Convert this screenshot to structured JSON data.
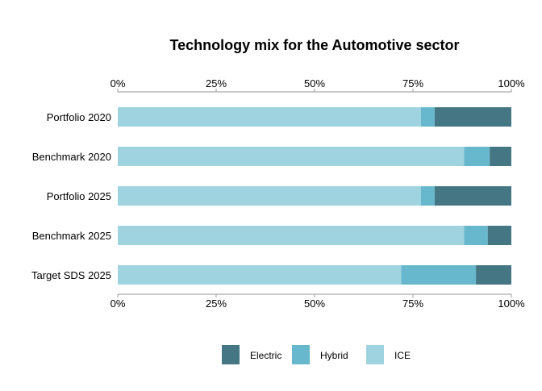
{
  "chart_data": {
    "type": "bar",
    "orientation": "horizontal",
    "stacked": true,
    "title": "Technology mix for the Automotive sector",
    "xlabel": "",
    "ylabel": "",
    "xlim": [
      0,
      1
    ],
    "x_ticks": [
      0,
      0.25,
      0.5,
      0.75,
      1.0
    ],
    "x_tick_labels": [
      "0%",
      "25%",
      "50%",
      "75%",
      "100%"
    ],
    "axis_positions": [
      "top",
      "bottom"
    ],
    "grid": false,
    "legend_position": "bottom",
    "categories": [
      "Portfolio 2020",
      "Benchmark 2020",
      "Portfolio 2025",
      "Benchmark 2025",
      "Target SDS 2025"
    ],
    "series": [
      {
        "name": "ICE",
        "color": "#a0d3e0",
        "values": [
          0.77,
          0.88,
          0.77,
          0.88,
          0.72
        ]
      },
      {
        "name": "Hybrid",
        "color": "#67b8cc",
        "values": [
          0.035,
          0.065,
          0.035,
          0.06,
          0.19
        ]
      },
      {
        "name": "Electric",
        "color": "#457684",
        "values": [
          0.195,
          0.055,
          0.195,
          0.06,
          0.09
        ]
      }
    ],
    "legend_order": [
      "Electric",
      "Hybrid",
      "ICE"
    ]
  }
}
